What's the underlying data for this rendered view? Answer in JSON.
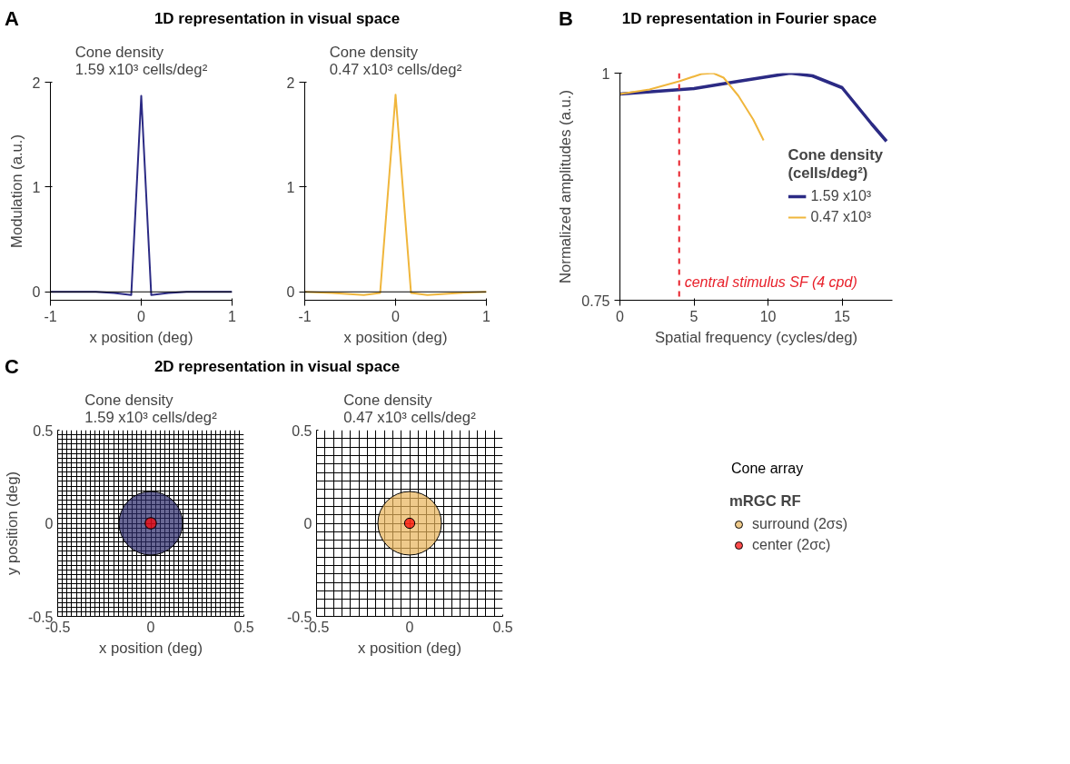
{
  "chart_data": [
    {
      "type": "line",
      "title": "1D representation in visual space",
      "annotations": [
        "A"
      ],
      "subtitle": "Cone density\n1.59 x10³ cells/deg²",
      "xlabel": "x position (deg)",
      "ylabel": "Modulation (a.u.)",
      "xlim": [
        -1,
        1
      ],
      "ylim": [
        -0.08,
        2
      ],
      "xticks": [
        -1,
        0,
        1
      ],
      "yticks": [
        0,
        1,
        2
      ],
      "series": [
        {
          "color": "#2b2a84",
          "x": [
            -1,
            -0.5,
            -0.3,
            -0.11,
            0,
            0.11,
            0.3,
            0.5,
            1
          ],
          "values": [
            0,
            0,
            -0.01,
            -0.03,
            1.87,
            -0.03,
            -0.01,
            0,
            0
          ]
        }
      ],
      "ref_lines": [
        {
          "axis": "y",
          "value": 0,
          "color": "#000000"
        }
      ]
    },
    {
      "type": "line",
      "subtitle": "Cone density\n0.47 x10³ cells/deg²",
      "xlabel": "x position (deg)",
      "xlim": [
        -1,
        1
      ],
      "ylim": [
        -0.08,
        2
      ],
      "xticks": [
        -1,
        0,
        1
      ],
      "yticks": [
        0,
        1,
        2
      ],
      "series": [
        {
          "color": "#f0b63c",
          "x": [
            -1,
            -0.7,
            -0.35,
            -0.17,
            0,
            0.17,
            0.35,
            0.7,
            1
          ],
          "values": [
            0,
            -0.01,
            -0.03,
            -0.01,
            1.88,
            -0.01,
            -0.03,
            -0.01,
            0
          ]
        }
      ],
      "ref_lines": [
        {
          "axis": "y",
          "value": 0,
          "color": "#000000"
        }
      ]
    },
    {
      "type": "line",
      "title": "1D representation in Fourier space",
      "annotations": [
        "B"
      ],
      "xlabel": "Spatial frequency (cycles/deg)",
      "ylabel": "Normalized amplitudes (a.u.)",
      "xlim": [
        0,
        18.4
      ],
      "ylim": [
        0.75,
        1
      ],
      "xticks": [
        0,
        5,
        10,
        15
      ],
      "yticks": [
        0.75,
        1
      ],
      "legend": "right",
      "legend_title": "Cone density\n(cells/deg²)",
      "series": [
        {
          "name": "1.59 x10³",
          "color": "#2b2a84",
          "x": [
            0,
            5,
            8,
            11.5,
            13,
            15,
            17,
            18
          ],
          "values": [
            0.977,
            0.983,
            0.991,
            1.0,
            0.997,
            0.984,
            0.944,
            0.925
          ]
        },
        {
          "name": "0.47 x10³",
          "color": "#f0b63c",
          "x": [
            0,
            2,
            4,
            5.5,
            6.3,
            7,
            8,
            9,
            9.7
          ],
          "values": [
            0.977,
            0.982,
            0.991,
            0.999,
            1.0,
            0.995,
            0.975,
            0.949,
            0.926
          ]
        }
      ],
      "ref_lines": [
        {
          "axis": "x",
          "value": 4,
          "label": "central stimulus SF (4 cpd)",
          "color": "#e8202a",
          "line_style": "dashed"
        }
      ]
    },
    {
      "type": "bubble",
      "title": "2D representation in visual space",
      "annotations": [
        "C"
      ],
      "subtitle": "Cone density\n1.59 x10³ cells/deg²",
      "xlabel": "x position (deg)",
      "ylabel": "y position (deg)",
      "xlim": [
        -0.5,
        0.5
      ],
      "ylim": [
        -0.5,
        0.5
      ],
      "grid": true,
      "xticks": [
        -0.5,
        {
          "value": -0.475,
          "label": null
        },
        {
          "value": -0.45,
          "label": null
        },
        {
          "value": -0.425,
          "label": null
        },
        {
          "value": -0.4,
          "label": null
        },
        {
          "value": -0.375,
          "label": null
        },
        {
          "value": -0.35,
          "label": null
        },
        {
          "value": -0.325,
          "label": null
        },
        {
          "value": -0.3,
          "label": null
        },
        {
          "value": -0.275,
          "label": null
        },
        {
          "value": -0.25,
          "label": null
        },
        {
          "value": -0.225,
          "label": null
        },
        {
          "value": -0.2,
          "label": null
        },
        {
          "value": -0.175,
          "label": null
        },
        {
          "value": -0.15,
          "label": null
        },
        {
          "value": -0.125,
          "label": null
        },
        {
          "value": -0.1,
          "label": null
        },
        {
          "value": -0.075,
          "label": null
        },
        {
          "value": -0.05,
          "label": null
        },
        {
          "value": -0.025,
          "label": null
        },
        0,
        {
          "value": 0.025,
          "label": null
        },
        {
          "value": 0.05,
          "label": null
        },
        {
          "value": 0.075,
          "label": null
        },
        {
          "value": 0.1,
          "label": null
        },
        {
          "value": 0.125,
          "label": null
        },
        {
          "value": 0.15,
          "label": null
        },
        {
          "value": 0.175,
          "label": null
        },
        {
          "value": 0.2,
          "label": null
        },
        {
          "value": 0.225,
          "label": null
        },
        {
          "value": 0.25,
          "label": null
        },
        {
          "value": 0.275,
          "label": null
        },
        {
          "value": 0.3,
          "label": null
        },
        {
          "value": 0.325,
          "label": null
        },
        {
          "value": 0.35,
          "label": null
        },
        {
          "value": 0.375,
          "label": null
        },
        {
          "value": 0.4,
          "label": null
        },
        {
          "value": 0.425,
          "label": null
        },
        {
          "value": 0.45,
          "label": null
        },
        {
          "value": 0.475,
          "label": null
        },
        0.5
      ],
      "yticks": [
        -0.5,
        {
          "value": -0.475,
          "label": null
        },
        {
          "value": -0.45,
          "label": null
        },
        {
          "value": -0.425,
          "label": null
        },
        {
          "value": -0.4,
          "label": null
        },
        {
          "value": -0.375,
          "label": null
        },
        {
          "value": -0.35,
          "label": null
        },
        {
          "value": -0.325,
          "label": null
        },
        {
          "value": -0.3,
          "label": null
        },
        {
          "value": -0.275,
          "label": null
        },
        {
          "value": -0.25,
          "label": null
        },
        {
          "value": -0.225,
          "label": null
        },
        {
          "value": -0.2,
          "label": null
        },
        {
          "value": -0.175,
          "label": null
        },
        {
          "value": -0.15,
          "label": null
        },
        {
          "value": -0.125,
          "label": null
        },
        {
          "value": -0.1,
          "label": null
        },
        {
          "value": -0.075,
          "label": null
        },
        {
          "value": -0.05,
          "label": null
        },
        {
          "value": -0.025,
          "label": null
        },
        0,
        {
          "value": 0.025,
          "label": null
        },
        {
          "value": 0.05,
          "label": null
        },
        {
          "value": 0.075,
          "label": null
        },
        {
          "value": 0.1,
          "label": null
        },
        {
          "value": 0.125,
          "label": null
        },
        {
          "value": 0.15,
          "label": null
        },
        {
          "value": 0.175,
          "label": null
        },
        {
          "value": 0.2,
          "label": null
        },
        {
          "value": 0.225,
          "label": null
        },
        {
          "value": 0.25,
          "label": null
        },
        {
          "value": 0.275,
          "label": null
        },
        {
          "value": 0.3,
          "label": null
        },
        {
          "value": 0.325,
          "label": null
        },
        {
          "value": 0.35,
          "label": null
        },
        {
          "value": 0.375,
          "label": null
        },
        {
          "value": 0.4,
          "label": null
        },
        {
          "value": 0.425,
          "label": null
        },
        {
          "value": 0.45,
          "label": null
        },
        {
          "value": 0.475,
          "label": null
        },
        0.5
      ],
      "series": [
        {
          "color": "#2b2a6a",
          "x": [
            0
          ],
          "values": [
            0
          ],
          "sizes": [
            1
          ]
        },
        {
          "color": "#ff0000",
          "x": [
            0
          ],
          "values": [
            0
          ],
          "sizes": [
            0.032
          ]
        }
      ]
    },
    {
      "type": "bubble",
      "subtitle": "Cone density\n0.47 x10³ cells/deg²",
      "xlabel": "x position (deg)",
      "xlim": [
        -0.5,
        0.5
      ],
      "ylim": [
        -0.5,
        0.5
      ],
      "grid": true,
      "legend": "right",
      "legend_title": "mRGC RF",
      "annotations": [
        "Cone array"
      ],
      "xticks": [
        -0.5,
        {
          "value": -0.455,
          "label": null
        },
        {
          "value": -0.409,
          "label": null
        },
        {
          "value": -0.364,
          "label": null
        },
        {
          "value": -0.318,
          "label": null
        },
        {
          "value": -0.273,
          "label": null
        },
        {
          "value": -0.227,
          "label": null
        },
        {
          "value": -0.182,
          "label": null
        },
        {
          "value": -0.136,
          "label": null
        },
        {
          "value": -0.091,
          "label": null
        },
        {
          "value": -0.045,
          "label": null
        },
        0,
        {
          "value": 0.045,
          "label": null
        },
        {
          "value": 0.091,
          "label": null
        },
        {
          "value": 0.136,
          "label": null
        },
        {
          "value": 0.182,
          "label": null
        },
        {
          "value": 0.227,
          "label": null
        },
        {
          "value": 0.273,
          "label": null
        },
        {
          "value": 0.318,
          "label": null
        },
        {
          "value": 0.364,
          "label": null
        },
        {
          "value": 0.409,
          "label": null
        },
        {
          "value": 0.455,
          "label": null
        },
        0.5
      ],
      "yticks": [
        -0.5,
        {
          "value": -0.455,
          "label": null
        },
        {
          "value": -0.409,
          "label": null
        },
        {
          "value": -0.364,
          "label": null
        },
        {
          "value": -0.318,
          "label": null
        },
        {
          "value": -0.273,
          "label": null
        },
        {
          "value": -0.227,
          "label": null
        },
        {
          "value": -0.182,
          "label": null
        },
        {
          "value": -0.136,
          "label": null
        },
        {
          "value": -0.091,
          "label": null
        },
        {
          "value": -0.045,
          "label": null
        },
        0,
        {
          "value": 0.045,
          "label": null
        },
        {
          "value": 0.091,
          "label": null
        },
        {
          "value": 0.136,
          "label": null
        },
        {
          "value": 0.182,
          "label": null
        },
        {
          "value": 0.227,
          "label": null
        },
        {
          "value": 0.273,
          "label": null
        },
        {
          "value": 0.318,
          "label": null
        },
        {
          "value": 0.364,
          "label": null
        },
        {
          "value": 0.409,
          "label": null
        },
        {
          "value": 0.455,
          "label": null
        },
        0.5
      ],
      "series": [
        {
          "name": "surround (2σs)",
          "color": "#e8b45a",
          "x": [
            0
          ],
          "values": [
            0
          ],
          "sizes": [
            1
          ]
        },
        {
          "name": "center (2σc)",
          "color": "#ff0000",
          "x": [
            0
          ],
          "values": [
            0
          ],
          "sizes": [
            0.026
          ]
        }
      ]
    }
  ]
}
